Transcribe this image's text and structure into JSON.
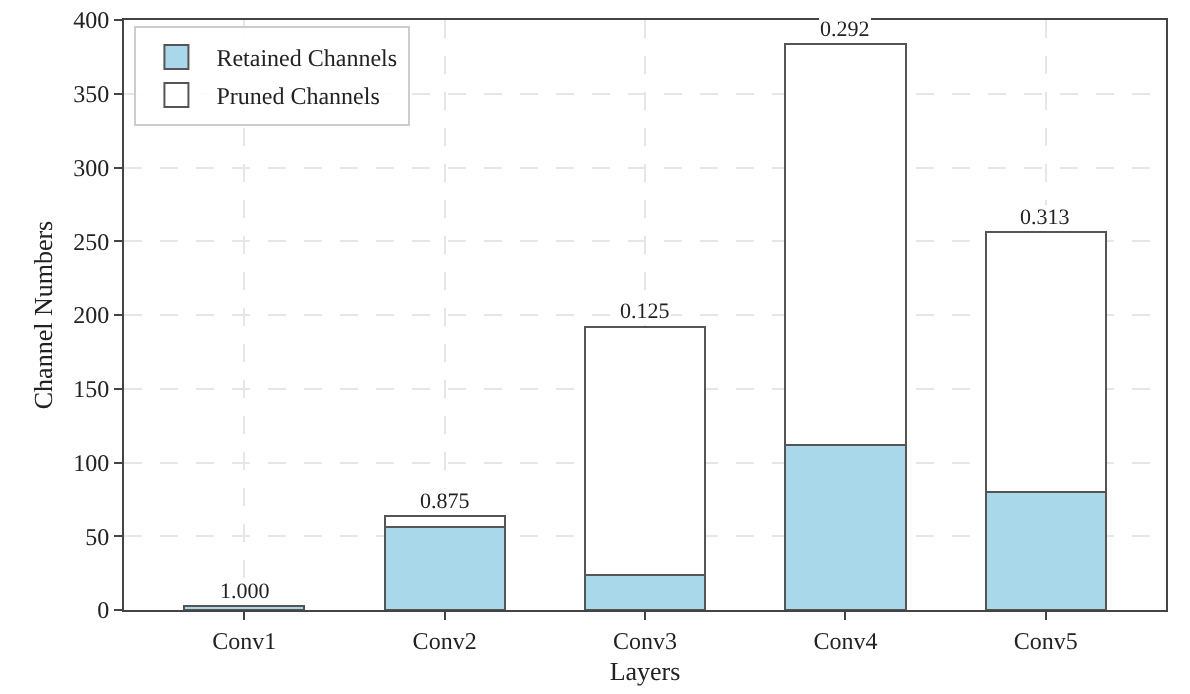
{
  "chart_data": {
    "type": "bar",
    "stacked": true,
    "xlabel": "Layers",
    "ylabel": "Channel Numbers",
    "categories": [
      "Conv1",
      "Conv2",
      "Conv3",
      "Conv4",
      "Conv5"
    ],
    "series": [
      {
        "name": "Retained Channels",
        "color": "#a8d8ea",
        "values": [
          3,
          56,
          24,
          112,
          80
        ]
      },
      {
        "name": "Pruned Channels",
        "color": "#ffffff",
        "values": [
          0,
          8,
          168,
          272,
          176
        ]
      }
    ],
    "ylim": [
      0,
      400
    ],
    "yticks": [
      0,
      50,
      100,
      150,
      200,
      250,
      300,
      350,
      400
    ],
    "grid": true,
    "legend": "top left",
    "annotations": [
      {
        "text": "1.000",
        "x": "Conv1",
        "y": 3
      },
      {
        "text": "0.875",
        "x": "Conv2",
        "y": 64
      },
      {
        "text": "0.125",
        "x": "Conv3",
        "y": 192
      },
      {
        "text": "0.292",
        "x": "Conv4",
        "y": 384
      },
      {
        "text": "0.313",
        "x": "Conv5",
        "y": 256
      }
    ]
  }
}
